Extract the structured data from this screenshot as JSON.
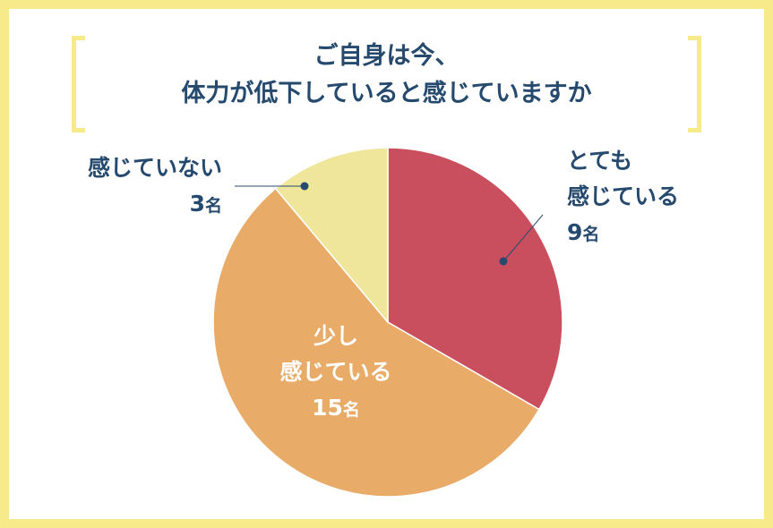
{
  "title": {
    "line1": "ご自身は今、",
    "line2": "体力が低下していると感じていますか"
  },
  "chart_data": {
    "type": "pie",
    "title": "ご自身は今、体力が低下していると感じていますか",
    "unit": "名",
    "start": "top",
    "direction": "clockwise",
    "slices": [
      {
        "label_lines": [
          "とても",
          "感じている"
        ],
        "value": 9,
        "value_text": "9",
        "color": "#c94f5e"
      },
      {
        "label_lines": [
          "少し",
          "感じている"
        ],
        "value": 15,
        "value_text": "15",
        "color": "#e8ab68"
      },
      {
        "label_lines": [
          "感じていない"
        ],
        "value": 3,
        "value_text": "3",
        "color": "#efe69c"
      }
    ]
  },
  "colors": {
    "border": "#f6ea8a",
    "text": "#264a6e"
  }
}
